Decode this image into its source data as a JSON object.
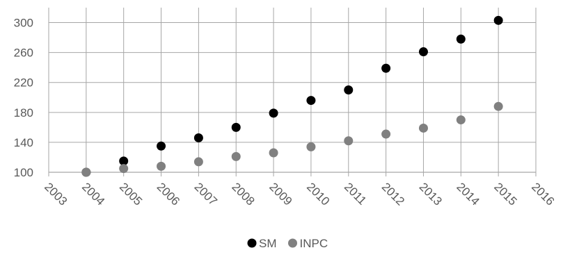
{
  "chart_data": {
    "type": "scatter",
    "xlim": [
      2003,
      2016
    ],
    "ylim": [
      100,
      320
    ],
    "x_ticks": [
      "2003",
      "2004",
      "2005",
      "2006",
      "2007",
      "2008",
      "2009",
      "2010",
      "2011",
      "2012",
      "2013",
      "2014",
      "2015",
      "2016"
    ],
    "y_ticks": [
      "100",
      "140",
      "180",
      "220",
      "260",
      "300"
    ],
    "grid": "horizontal and vertical",
    "legend_position": "bottom",
    "series": [
      {
        "name": "SM",
        "color": "#000000",
        "x": [
          2004,
          2005,
          2006,
          2007,
          2008,
          2009,
          2010,
          2011,
          2012,
          2013,
          2014,
          2015
        ],
        "y": [
          100,
          115,
          135,
          146,
          160,
          179,
          196,
          210,
          239,
          261,
          278,
          303
        ]
      },
      {
        "name": "INPC",
        "color": "#808080",
        "x": [
          2004,
          2005,
          2006,
          2007,
          2008,
          2009,
          2010,
          2011,
          2012,
          2013,
          2014,
          2015
        ],
        "y": [
          100,
          105,
          108,
          114,
          121,
          126,
          134,
          142,
          151,
          159,
          170,
          188
        ]
      }
    ]
  }
}
